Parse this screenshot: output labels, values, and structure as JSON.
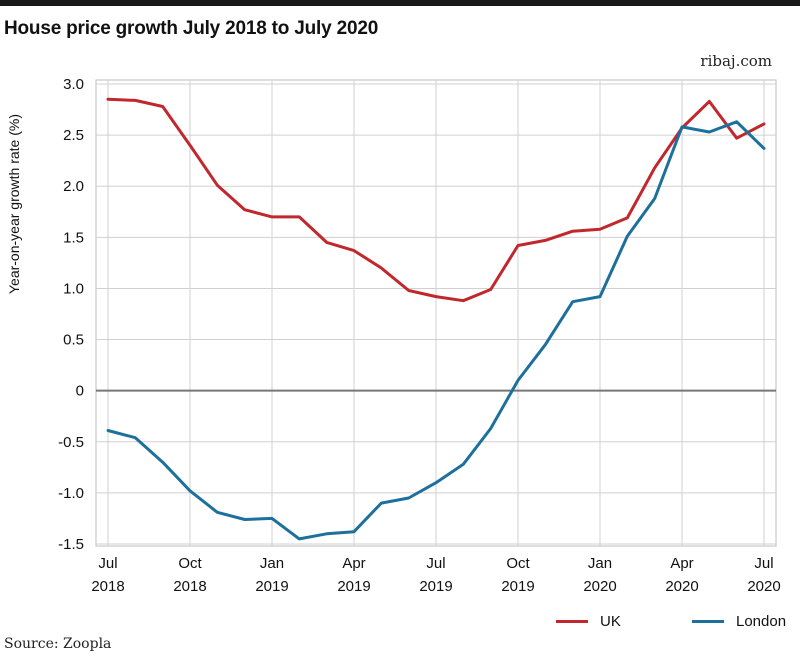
{
  "chart_data": {
    "type": "line",
    "title": "House price growth July 2018 to July 2020",
    "ylabel": "Year-on-year growth rate (%)",
    "ylim": [
      -1.5,
      3.0
    ],
    "yticks": [
      3.0,
      2.5,
      2.0,
      1.5,
      1.0,
      0.5,
      0,
      -0.5,
      -1.0,
      -1.5
    ],
    "ytick_labels": [
      "3.0",
      "2.5",
      "2.0",
      "1.5",
      "1.0",
      "0.5",
      "0",
      "-0.5",
      "-1.0",
      "-1.5"
    ],
    "xticks": [
      {
        "line1": "Jul",
        "line2": "2018"
      },
      {
        "line1": "Oct",
        "line2": "2018"
      },
      {
        "line1": "Jan",
        "line2": "2019"
      },
      {
        "line1": "Apr",
        "line2": "2019"
      },
      {
        "line1": "Jul",
        "line2": "2019"
      },
      {
        "line1": "Oct",
        "line2": "2019"
      },
      {
        "line1": "Jan",
        "line2": "2020"
      },
      {
        "line1": "Apr",
        "line2": "2020"
      },
      {
        "line1": "Jul",
        "line2": "2020"
      }
    ],
    "x": [
      "Jul 2018",
      "Aug 2018",
      "Sep 2018",
      "Oct 2018",
      "Nov 2018",
      "Dec 2018",
      "Jan 2019",
      "Feb 2019",
      "Mar 2019",
      "Apr 2019",
      "May 2019",
      "Jun 2019",
      "Jul 2019",
      "Aug 2019",
      "Sep 2019",
      "Oct 2019",
      "Nov 2019",
      "Dec 2019",
      "Jan 2020",
      "Feb 2020",
      "Mar 2020",
      "Apr 2020",
      "May 2020",
      "Jun 2020",
      "Jul 2020"
    ],
    "series": [
      {
        "name": "UK",
        "color": "#c0282d",
        "values": [
          2.85,
          2.84,
          2.78,
          2.4,
          2.01,
          1.77,
          1.7,
          1.7,
          1.45,
          1.37,
          1.2,
          0.98,
          0.92,
          0.88,
          0.99,
          1.42,
          1.47,
          1.56,
          1.58,
          1.69,
          2.18,
          2.57,
          2.83,
          2.47,
          2.61
        ]
      },
      {
        "name": "London",
        "color": "#1d6f9c",
        "values": [
          -0.39,
          -0.46,
          -0.7,
          -0.98,
          -1.19,
          -1.26,
          -1.25,
          -1.45,
          -1.4,
          -1.38,
          -1.1,
          -1.05,
          -0.9,
          -0.72,
          -0.37,
          0.1,
          0.45,
          0.87,
          0.92,
          1.51,
          1.88,
          2.58,
          2.53,
          2.63,
          2.37
        ]
      }
    ],
    "grid": true,
    "legend_position": "bottom-right"
  },
  "source_site": "ribaj.com",
  "footer": "Source: Zoopla"
}
